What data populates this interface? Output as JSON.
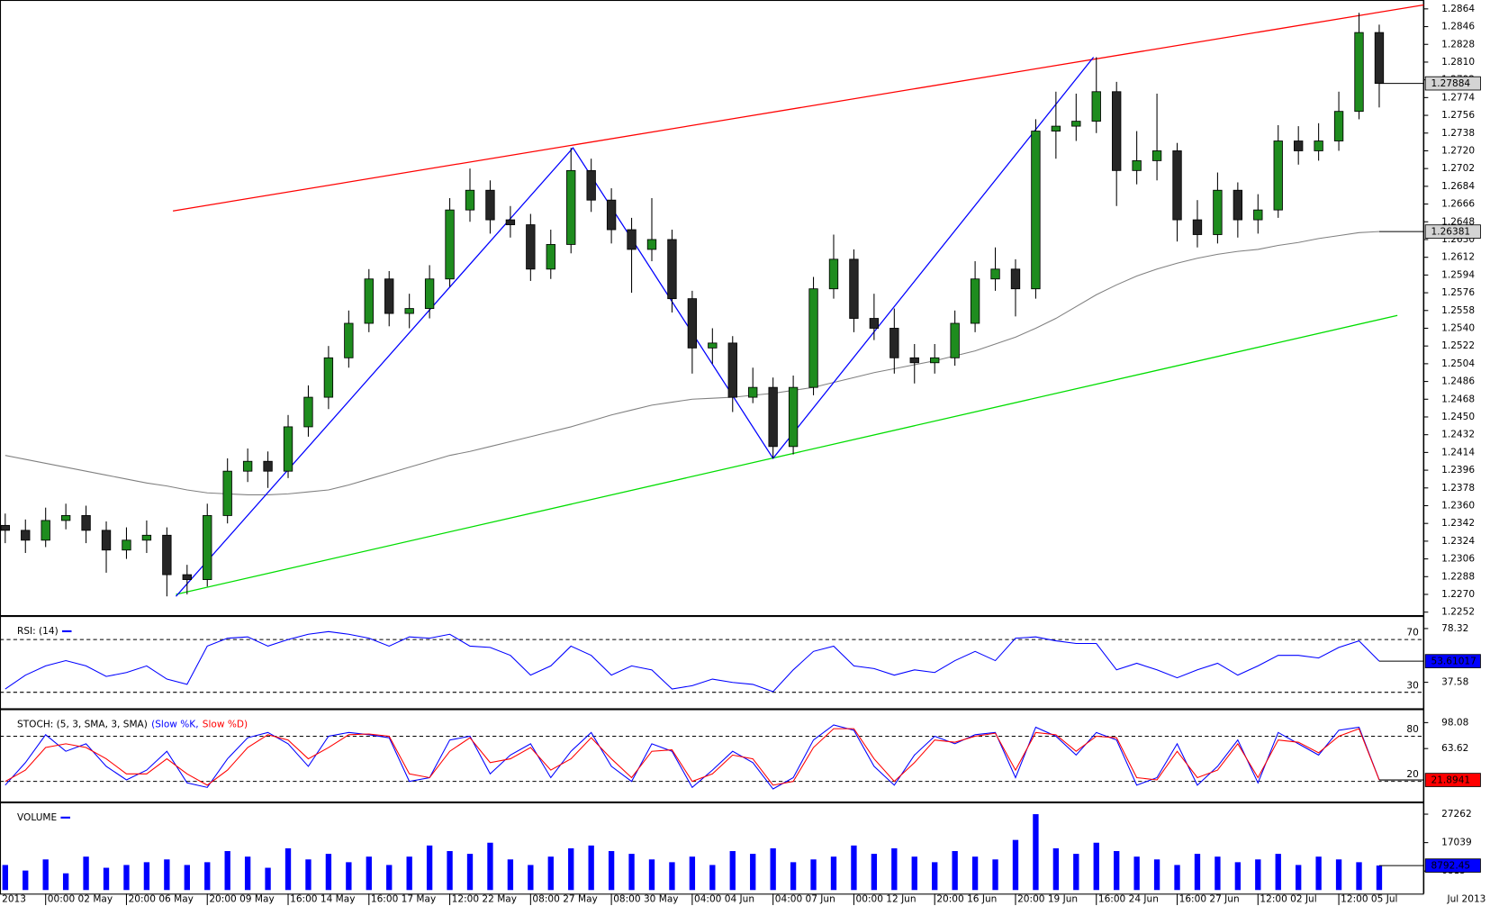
{
  "chart_data": [
    {
      "type": "candlestick",
      "x": [
        null,
        null,
        "00:00 02 May",
        null,
        null,
        null,
        "20:00 06 May",
        null,
        null,
        null,
        "20:00 09 May",
        null,
        null,
        null,
        "16:00 14 May",
        null,
        null,
        null,
        "16:00 17 May",
        null,
        null,
        null,
        "12:00 22 May",
        null,
        null,
        null,
        "08:00 27 May",
        null,
        null,
        null,
        "08:00 30 May",
        null,
        null,
        null,
        "04:00 04 Jun",
        null,
        null,
        null,
        "04:00 07 Jun",
        null,
        null,
        null,
        "00:00 12 Jun",
        null,
        null,
        null,
        "20:00 16 Jun",
        null,
        null,
        null,
        "20:00 19 Jun",
        null,
        null,
        null,
        "16:00 24 Jun",
        null,
        null,
        null,
        "16:00 27 Jun",
        null,
        null,
        null,
        "12:00 02 Jul",
        null,
        null,
        null,
        "12:00 05 Jul",
        null,
        null
      ],
      "x_start_label": "2013",
      "x_end_label": "Jul 2013",
      "open": [
        1.234,
        1.2335,
        1.2325,
        1.2345,
        1.235,
        1.2335,
        1.2315,
        1.2325,
        1.233,
        1.229,
        1.2285,
        1.235,
        1.2395,
        1.2405,
        1.2395,
        1.244,
        1.247,
        1.251,
        1.2545,
        1.259,
        1.2555,
        1.256,
        1.259,
        1.266,
        1.268,
        1.265,
        1.2645,
        1.26,
        1.2625,
        1.27,
        1.267,
        1.264,
        1.262,
        1.263,
        1.257,
        1.252,
        1.2525,
        1.247,
        1.248,
        1.242,
        1.248,
        1.258,
        1.261,
        1.255,
        1.254,
        1.251,
        1.2505,
        1.251,
        1.2545,
        1.259,
        1.26,
        1.258,
        1.274,
        1.2745,
        1.275,
        1.278,
        1.27,
        1.271,
        1.272,
        1.265,
        1.2635,
        1.268,
        1.265,
        1.266,
        1.273,
        1.272,
        1.273,
        1.276,
        1.284
      ],
      "high": [
        1.2352,
        1.2346,
        1.2358,
        1.2362,
        1.236,
        1.2344,
        1.2338,
        1.2345,
        1.2338,
        1.23,
        1.2362,
        1.2408,
        1.2418,
        1.2415,
        1.2452,
        1.2482,
        1.2522,
        1.2558,
        1.26,
        1.2598,
        1.2575,
        1.2604,
        1.2672,
        1.2702,
        1.269,
        1.2664,
        1.2656,
        1.264,
        1.2723,
        1.2712,
        1.2682,
        1.2652,
        1.2672,
        1.264,
        1.2578,
        1.254,
        1.2532,
        1.25,
        1.249,
        1.2492,
        1.2592,
        1.2635,
        1.262,
        1.2575,
        1.256,
        1.2524,
        1.2524,
        1.2558,
        1.2608,
        1.2622,
        1.261,
        1.2752,
        1.278,
        1.2778,
        1.2815,
        1.279,
        1.274,
        1.2778,
        1.2728,
        1.267,
        1.2698,
        1.2688,
        1.2676,
        1.2746,
        1.2745,
        1.2748,
        1.278,
        1.286,
        1.2848
      ],
      "low": [
        1.2322,
        1.2312,
        1.2318,
        1.2336,
        1.2322,
        1.2292,
        1.2306,
        1.2312,
        1.2268,
        1.227,
        1.2278,
        1.2342,
        1.2384,
        1.2378,
        1.2388,
        1.243,
        1.2458,
        1.25,
        1.2536,
        1.2542,
        1.254,
        1.255,
        1.2582,
        1.2648,
        1.2636,
        1.2632,
        1.2588,
        1.259,
        1.2616,
        1.2658,
        1.2626,
        1.2576,
        1.2608,
        1.2556,
        1.2494,
        1.2504,
        1.2455,
        1.2464,
        1.2408,
        1.2412,
        1.2472,
        1.257,
        1.2536,
        1.2528,
        1.2494,
        1.2484,
        1.2494,
        1.2502,
        1.2536,
        1.2578,
        1.2552,
        1.257,
        1.2712,
        1.273,
        1.2738,
        1.2664,
        1.2686,
        1.269,
        1.2628,
        1.2622,
        1.2626,
        1.2632,
        1.2636,
        1.2652,
        1.2706,
        1.271,
        1.272,
        1.2752,
        1.2764
      ],
      "close": [
        1.2335,
        1.2325,
        1.2345,
        1.235,
        1.2335,
        1.2315,
        1.2325,
        1.233,
        1.229,
        1.2285,
        1.235,
        1.2395,
        1.2405,
        1.2395,
        1.244,
        1.247,
        1.251,
        1.2545,
        1.259,
        1.2555,
        1.256,
        1.259,
        1.266,
        1.268,
        1.265,
        1.2645,
        1.26,
        1.2625,
        1.27,
        1.267,
        1.264,
        1.262,
        1.263,
        1.257,
        1.252,
        1.2525,
        1.247,
        1.248,
        1.242,
        1.248,
        1.258,
        1.261,
        1.255,
        1.254,
        1.251,
        1.2505,
        1.251,
        1.2545,
        1.259,
        1.26,
        1.258,
        1.274,
        1.2745,
        1.275,
        1.278,
        1.27,
        1.271,
        1.272,
        1.265,
        1.2635,
        1.268,
        1.265,
        1.266,
        1.273,
        1.272,
        1.273,
        1.276,
        1.284,
        1.27884
      ],
      "up_color": "#1e8c1e",
      "down_color": "#262626",
      "ma": {
        "color": "#808080",
        "values": [
          1.2411,
          1.2407,
          1.2403,
          1.2399,
          1.2395,
          1.2391,
          1.2387,
          1.2383,
          1.238,
          1.2376,
          1.2373,
          1.2372,
          1.2371,
          1.2371,
          1.2372,
          1.2374,
          1.2376,
          1.2381,
          1.2387,
          1.2393,
          1.2399,
          1.2405,
          1.2411,
          1.2415,
          1.242,
          1.2425,
          1.243,
          1.2435,
          1.244,
          1.2446,
          1.2452,
          1.2457,
          1.2462,
          1.2465,
          1.2468,
          1.2469,
          1.247,
          1.2472,
          1.2474,
          1.2477,
          1.248,
          1.2485,
          1.249,
          1.2495,
          1.2499,
          1.2503,
          1.2507,
          1.2512,
          1.2517,
          1.2524,
          1.2531,
          1.254,
          1.255,
          1.2562,
          1.2574,
          1.2584,
          1.2593,
          1.26,
          1.2606,
          1.2611,
          1.2615,
          1.2618,
          1.262,
          1.2624,
          1.2627,
          1.2631,
          1.2634,
          1.2637,
          1.26381
        ]
      },
      "trend_lines": [
        {
          "color": "#ff0000",
          "x": [
            8.3,
            70.2
          ],
          "y": [
            1.2659,
            1.2868
          ]
        },
        {
          "color": "#00dd00",
          "x": [
            8.45,
            68.9
          ],
          "y": [
            1.227,
            1.2553
          ]
        },
        {
          "color": "#0000ff",
          "x": [
            8.45,
            28.1,
            38.0,
            53.86
          ],
          "y": [
            1.2268,
            1.2723,
            1.2408,
            1.2815
          ]
        }
      ],
      "ylim": [
        1.2249,
        1.2873
      ],
      "yticks": [
        1.2864,
        1.2846,
        1.2828,
        {
          "value": 1.281,
          "label": "1.2810"
        },
        1.2792,
        1.2774,
        1.2756,
        1.2738,
        {
          "value": 1.272,
          "label": "1.2720"
        },
        1.2702,
        1.2684,
        1.2666,
        1.2648,
        {
          "value": 1.263,
          "label": "1.2630"
        },
        1.2612,
        1.2594,
        1.2576,
        1.2558,
        {
          "value": 1.254,
          "label": "1.2540"
        },
        1.2522,
        1.2504,
        1.2486,
        1.2468,
        {
          "value": 1.245,
          "label": "1.2450"
        },
        1.2432,
        1.2414,
        1.2396,
        1.2378,
        {
          "value": 1.236,
          "label": "1.2360"
        },
        1.2342,
        1.2324,
        1.2306,
        1.2288,
        {
          "value": 1.227,
          "label": "1.2270"
        },
        1.2252
      ]
    },
    {
      "type": "line",
      "title": "RSI: (14)",
      "series": [
        {
          "color": "#0000ff",
          "values": [
            32.5,
            43,
            50,
            54,
            50,
            42,
            45,
            50,
            40,
            36,
            65,
            71,
            72,
            65,
            70,
            74,
            76,
            74,
            71,
            65,
            72,
            71,
            74,
            65,
            64,
            58,
            43,
            50,
            65,
            58,
            43,
            50,
            47,
            32.5,
            35,
            40,
            37.5,
            36,
            30.5,
            47,
            61,
            65,
            50,
            48,
            43,
            47,
            45,
            54,
            61,
            54,
            71,
            72,
            69,
            67,
            67,
            47,
            52,
            47,
            41,
            47,
            52,
            43,
            50,
            58,
            58,
            56,
            64,
            69,
            53.61017
          ]
        }
      ],
      "levels": [
        70,
        30
      ],
      "ylim": [
        17.9,
        87.8
      ],
      "yticks": [
        78.32,
        37.58
      ]
    },
    {
      "type": "line",
      "title": "STOCH: (5, 3, SMA, 3, SMA)",
      "series": [
        {
          "name": "(Slow %K,",
          "color": "#0000ff",
          "values": [
            15,
            45,
            82,
            60,
            70,
            40,
            22,
            35,
            60,
            18,
            12,
            50,
            78,
            85,
            70,
            40,
            80,
            85,
            82,
            78,
            20,
            25,
            75,
            80,
            30,
            55,
            70,
            25,
            60,
            85,
            40,
            20,
            70,
            60,
            12,
            35,
            60,
            45,
            10,
            25,
            75,
            95,
            88,
            40,
            15,
            55,
            80,
            70,
            82,
            85,
            25,
            92,
            80,
            55,
            85,
            75,
            15,
            25,
            70,
            15,
            40,
            75,
            18,
            85,
            70,
            55,
            88,
            92,
            22
          ]
        },
        {
          "name": "Slow %D)",
          "color": "#ff0000",
          "values": [
            20,
            35,
            65,
            70,
            65,
            50,
            30,
            30,
            50,
            30,
            15,
            35,
            65,
            82,
            75,
            50,
            65,
            82,
            83,
            80,
            30,
            25,
            60,
            78,
            45,
            50,
            65,
            35,
            50,
            78,
            50,
            25,
            60,
            62,
            20,
            30,
            55,
            50,
            15,
            20,
            65,
            90,
            90,
            50,
            20,
            45,
            75,
            72,
            80,
            84,
            35,
            85,
            82,
            60,
            80,
            78,
            25,
            22,
            60,
            25,
            35,
            70,
            25,
            75,
            72,
            58,
            80,
            90,
            21.8941
          ]
        }
      ],
      "levels": [
        80,
        20
      ],
      "ylim": [
        -6.6,
        115.9
      ],
      "yticks": [
        98.08,
        63.62
      ]
    },
    {
      "type": "bar",
      "title": "VOLUME",
      "color": "#0000ff",
      "values": [
        9000,
        7000,
        11000,
        6000,
        12000,
        8000,
        9000,
        10000,
        11000,
        9000,
        10000,
        14000,
        12000,
        8000,
        15000,
        11000,
        13000,
        10000,
        12000,
        9000,
        12000,
        16000,
        14000,
        13000,
        17000,
        11000,
        9000,
        12000,
        15000,
        16000,
        14000,
        13000,
        11000,
        10000,
        12000,
        9000,
        14000,
        13000,
        15000,
        10000,
        11000,
        12000,
        16000,
        13000,
        15000,
        12000,
        10000,
        14000,
        12000,
        11000,
        18000,
        27262,
        15000,
        13000,
        17000,
        14000,
        12000,
        11000,
        9000,
        13000,
        12000,
        10000,
        11000,
        13000,
        9000,
        12000,
        11000,
        10000,
        8792.45
      ],
      "ylim": [
        -1300,
        31500
      ],
      "yticks": [
        27262,
        17039,
        6815
      ]
    }
  ]
}
